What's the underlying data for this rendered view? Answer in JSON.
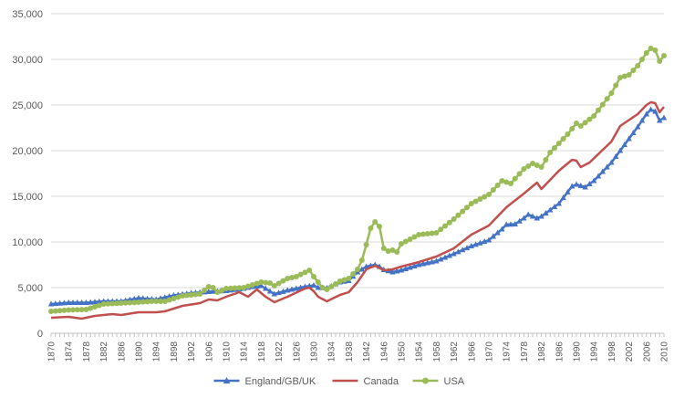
{
  "chart_data": {
    "type": "line",
    "title": "",
    "xlabel": "",
    "ylabel": "",
    "xlim": [
      1870,
      2010
    ],
    "ylim": [
      0,
      35000
    ],
    "grid": "horizontal",
    "legend_position": "bottom",
    "y_ticks": [
      "0",
      "5,000",
      "10,000",
      "15,000",
      "20,000",
      "25,000",
      "30,000",
      "35,000"
    ],
    "y_tick_values": [
      0,
      5000,
      10000,
      15000,
      20000,
      25000,
      30000,
      35000
    ],
    "x_ticks": [
      "1870",
      "1874",
      "1878",
      "1882",
      "1886",
      "1890",
      "1894",
      "1898",
      "1902",
      "1906",
      "1910",
      "1914",
      "1918",
      "1922",
      "1926",
      "1930",
      "1934",
      "1938",
      "1942",
      "1946",
      "1950",
      "1954",
      "1958",
      "1962",
      "1966",
      "1970",
      "1974",
      "1978",
      "1982",
      "1986",
      "1990",
      "1994",
      "1998",
      "2002",
      "2006",
      "2010"
    ],
    "series": [
      {
        "name": "England/GB/UK",
        "color": "#4472C4",
        "marker": "triangle",
        "points": [
          [
            1870,
            3200
          ],
          [
            1874,
            3350
          ],
          [
            1878,
            3350
          ],
          [
            1882,
            3500
          ],
          [
            1886,
            3500
          ],
          [
            1890,
            3850
          ],
          [
            1894,
            3700
          ],
          [
            1898,
            4150
          ],
          [
            1902,
            4400
          ],
          [
            1906,
            4550
          ],
          [
            1910,
            4650
          ],
          [
            1914,
            4900
          ],
          [
            1916,
            5100
          ],
          [
            1918,
            5200
          ],
          [
            1920,
            4600
          ],
          [
            1921,
            4300
          ],
          [
            1924,
            4700
          ],
          [
            1928,
            5100
          ],
          [
            1930,
            5250
          ],
          [
            1931,
            5000
          ],
          [
            1933,
            4950
          ],
          [
            1936,
            5600
          ],
          [
            1938,
            5750
          ],
          [
            1940,
            6700
          ],
          [
            1942,
            7300
          ],
          [
            1944,
            7500
          ],
          [
            1945,
            7300
          ],
          [
            1946,
            6950
          ],
          [
            1948,
            6700
          ],
          [
            1950,
            6900
          ],
          [
            1954,
            7500
          ],
          [
            1958,
            7900
          ],
          [
            1962,
            8700
          ],
          [
            1966,
            9550
          ],
          [
            1970,
            10200
          ],
          [
            1973,
            11400
          ],
          [
            1974,
            11900
          ],
          [
            1976,
            11950
          ],
          [
            1978,
            12600
          ],
          [
            1979,
            13000
          ],
          [
            1980,
            12800
          ],
          [
            1981,
            12600
          ],
          [
            1982,
            12800
          ],
          [
            1986,
            14200
          ],
          [
            1989,
            16100
          ],
          [
            1990,
            16300
          ],
          [
            1992,
            16000
          ],
          [
            1994,
            16700
          ],
          [
            1998,
            18700
          ],
          [
            2002,
            21300
          ],
          [
            2004,
            22600
          ],
          [
            2006,
            24000
          ],
          [
            2007,
            24500
          ],
          [
            2008,
            24300
          ],
          [
            2009,
            23300
          ],
          [
            2010,
            23600
          ]
        ]
      },
      {
        "name": "Canada",
        "color": "#C0504D",
        "marker": "none",
        "points": [
          [
            1870,
            1700
          ],
          [
            1874,
            1800
          ],
          [
            1877,
            1600
          ],
          [
            1880,
            1900
          ],
          [
            1884,
            2100
          ],
          [
            1886,
            2000
          ],
          [
            1890,
            2300
          ],
          [
            1894,
            2300
          ],
          [
            1896,
            2400
          ],
          [
            1900,
            3000
          ],
          [
            1904,
            3300
          ],
          [
            1906,
            3700
          ],
          [
            1908,
            3600
          ],
          [
            1910,
            4000
          ],
          [
            1913,
            4500
          ],
          [
            1915,
            4000
          ],
          [
            1917,
            4800
          ],
          [
            1919,
            4000
          ],
          [
            1921,
            3400
          ],
          [
            1924,
            4000
          ],
          [
            1928,
            4900
          ],
          [
            1929,
            5000
          ],
          [
            1930,
            4600
          ],
          [
            1931,
            4000
          ],
          [
            1933,
            3500
          ],
          [
            1936,
            4200
          ],
          [
            1938,
            4500
          ],
          [
            1940,
            5600
          ],
          [
            1942,
            7000
          ],
          [
            1944,
            7400
          ],
          [
            1946,
            6900
          ],
          [
            1948,
            7000
          ],
          [
            1950,
            7300
          ],
          [
            1954,
            7800
          ],
          [
            1958,
            8400
          ],
          [
            1962,
            9300
          ],
          [
            1966,
            10800
          ],
          [
            1970,
            11800
          ],
          [
            1974,
            13800
          ],
          [
            1978,
            15300
          ],
          [
            1981,
            16500
          ],
          [
            1982,
            15800
          ],
          [
            1986,
            17800
          ],
          [
            1989,
            19000
          ],
          [
            1990,
            18900
          ],
          [
            1991,
            18200
          ],
          [
            1993,
            18700
          ],
          [
            1998,
            21000
          ],
          [
            2000,
            22700
          ],
          [
            2004,
            24000
          ],
          [
            2006,
            25000
          ],
          [
            2007,
            25300
          ],
          [
            2008,
            25200
          ],
          [
            2009,
            24200
          ],
          [
            2010,
            24800
          ]
        ]
      },
      {
        "name": "USA",
        "color": "#9BBB59",
        "marker": "circle",
        "points": [
          [
            1870,
            2400
          ],
          [
            1874,
            2550
          ],
          [
            1878,
            2600
          ],
          [
            1882,
            3200
          ],
          [
            1886,
            3300
          ],
          [
            1890,
            3400
          ],
          [
            1893,
            3500
          ],
          [
            1896,
            3500
          ],
          [
            1900,
            4100
          ],
          [
            1904,
            4300
          ],
          [
            1906,
            5100
          ],
          [
            1907,
            5000
          ],
          [
            1908,
            4500
          ],
          [
            1910,
            4900
          ],
          [
            1914,
            5000
          ],
          [
            1916,
            5300
          ],
          [
            1918,
            5600
          ],
          [
            1920,
            5500
          ],
          [
            1921,
            5200
          ],
          [
            1924,
            6000
          ],
          [
            1926,
            6200
          ],
          [
            1929,
            6900
          ],
          [
            1930,
            6200
          ],
          [
            1932,
            5000
          ],
          [
            1933,
            4800
          ],
          [
            1936,
            5700
          ],
          [
            1938,
            6000
          ],
          [
            1940,
            7000
          ],
          [
            1941,
            8000
          ],
          [
            1942,
            9700
          ],
          [
            1943,
            11500
          ],
          [
            1944,
            12200
          ],
          [
            1945,
            11700
          ],
          [
            1946,
            9300
          ],
          [
            1947,
            9000
          ],
          [
            1948,
            9100
          ],
          [
            1949,
            8900
          ],
          [
            1950,
            9800
          ],
          [
            1954,
            10800
          ],
          [
            1958,
            11000
          ],
          [
            1962,
            12500
          ],
          [
            1966,
            14200
          ],
          [
            1970,
            15200
          ],
          [
            1973,
            16700
          ],
          [
            1975,
            16400
          ],
          [
            1978,
            18000
          ],
          [
            1980,
            18600
          ],
          [
            1982,
            18200
          ],
          [
            1984,
            19800
          ],
          [
            1988,
            21800
          ],
          [
            1990,
            23000
          ],
          [
            1991,
            22700
          ],
          [
            1994,
            23800
          ],
          [
            1998,
            26300
          ],
          [
            2000,
            28000
          ],
          [
            2002,
            28300
          ],
          [
            2004,
            29300
          ],
          [
            2006,
            30700
          ],
          [
            2007,
            31200
          ],
          [
            2008,
            31000
          ],
          [
            2009,
            29800
          ],
          [
            2010,
            30400
          ]
        ]
      }
    ]
  }
}
